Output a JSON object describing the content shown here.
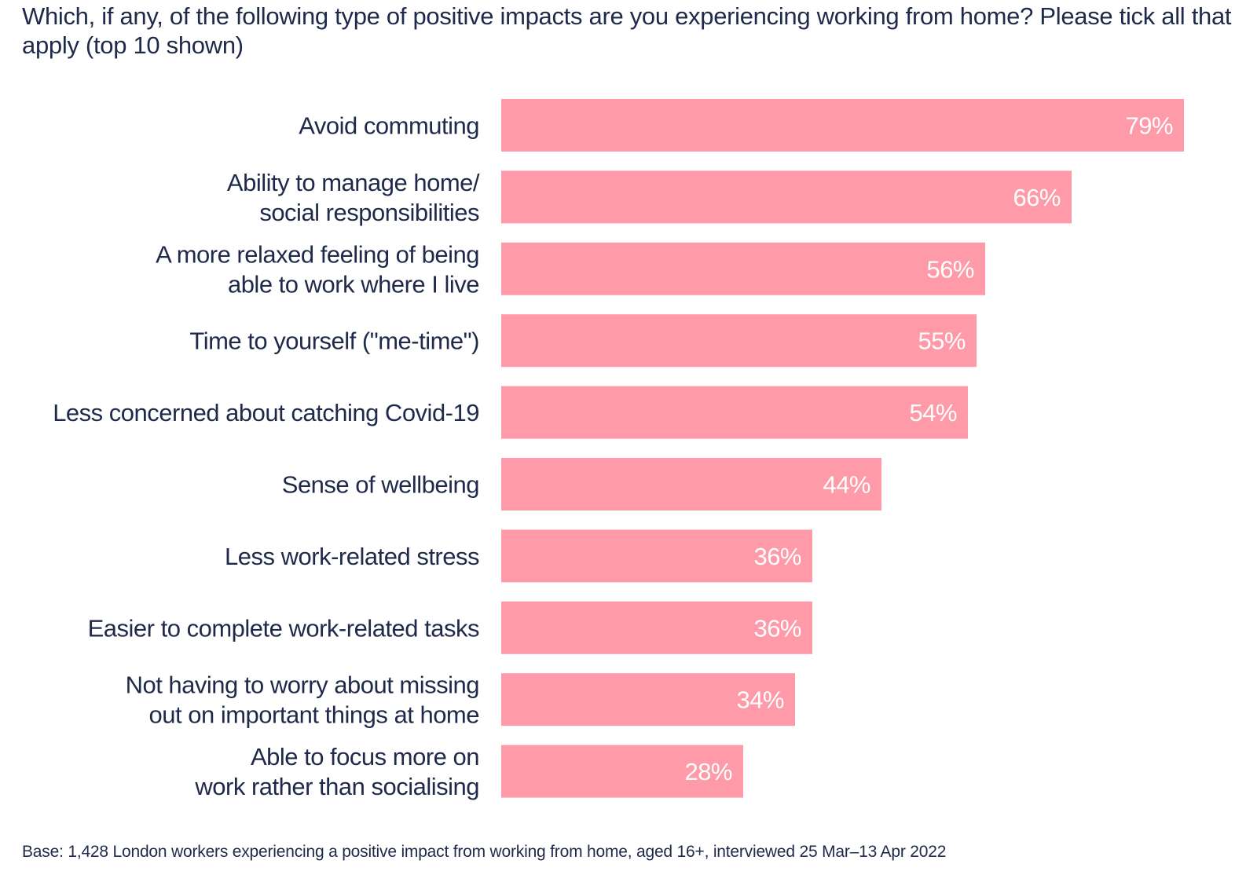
{
  "chart_data": {
    "type": "bar",
    "orientation": "horizontal",
    "title": "Which, if any, of the following type of positive impacts are you experiencing working from home? Please tick all that apply (top 10 shown)",
    "categories": [
      [
        "Avoid commuting"
      ],
      [
        "Ability to manage home/",
        "social responsibilities"
      ],
      [
        "A more relaxed feeling of being",
        "able to work where I live"
      ],
      [
        "Time to yourself (\"me-time\")"
      ],
      [
        "Less concerned about catching Covid-19"
      ],
      [
        "Sense of wellbeing"
      ],
      [
        "Less work-related stress"
      ],
      [
        "Easier to complete work-related tasks"
      ],
      [
        "Not having to worry about missing",
        "out on important things at home"
      ],
      [
        "Able to focus more on",
        "work rather than socialising"
      ]
    ],
    "values": [
      79,
      66,
      56,
      55,
      54,
      44,
      36,
      36,
      34,
      28
    ],
    "value_labels": [
      "79%",
      "66%",
      "56%",
      "55%",
      "54%",
      "44%",
      "36%",
      "36%",
      "34%",
      "28%"
    ],
    "unit": "%",
    "xlim": [
      0,
      100
    ],
    "grid": false,
    "legend": "none",
    "bar_color": "#ff9aa8",
    "footnote": "Base: 1,428 London workers experiencing a positive impact from working from home, aged 16+, interviewed 25 Mar–13 Apr 2022"
  },
  "colors": {
    "text": "#1f2a4a",
    "bar": "#ff9aa8",
    "value_text": "#ffffff"
  }
}
